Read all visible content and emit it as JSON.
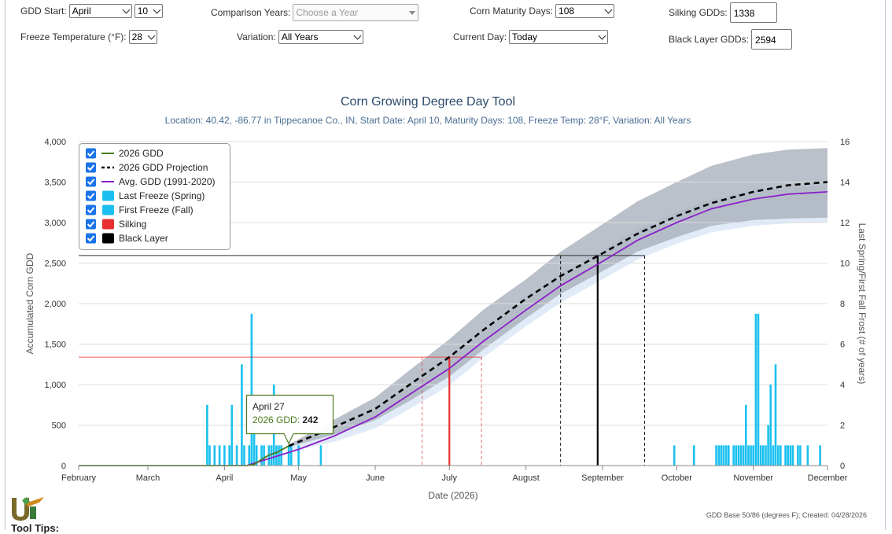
{
  "controls": {
    "gdd_start_label": "GDD Start:",
    "gdd_start_month": "April",
    "gdd_start_day": "10",
    "freeze_temp_label": "Freeze Temperature (°F):",
    "freeze_temp_value": "28",
    "comparison_years_label": "Comparison Years:",
    "comparison_years_placeholder": "Choose a Year",
    "variation_label": "Variation:",
    "variation_value": "All Years",
    "maturity_days_label": "Corn Maturity Days:",
    "maturity_days_value": "108",
    "current_day_label": "Current Day:",
    "current_day_value": "Today",
    "silking_label": "Silking GDDs:",
    "silking_value": "1338",
    "black_layer_label": "Black Layer GDDs:",
    "black_layer_value": "2594"
  },
  "footer": {
    "tool_tips": "Tool Tips:"
  },
  "colors": {
    "gdd2026": "#4a7a1a",
    "avg": "#8b1fc8",
    "frost": "#1bc0f0",
    "silking": "#e83030",
    "black": "#000000",
    "band_dark": "#a4acb8",
    "band_light": "#dfeaf8",
    "title": "#2c4a6a"
  },
  "chart_data": {
    "type": "line",
    "title": "Corn Growing Degree Day Tool",
    "subtitle": "Location: 40.42, -86.77 in Tippecanoe Co., IN, Start Date: April 10, Maturity Days: 108, Freeze Temp: 28°F, Variation: All Years",
    "xlabel": "Date (2026)",
    "ylabel": "Accumulated Corn GDD",
    "y2label": "Last Spring/First Fall Frost (# of years)",
    "credit": "GDD Base 50/86 (degrees F); Created: 04/28/2026",
    "x_ticks": [
      "February",
      "March",
      "April",
      "May",
      "June",
      "July",
      "August",
      "September",
      "October",
      "November",
      "December"
    ],
    "x_range": [
      "2026-02-01",
      "2026-12-01"
    ],
    "y_ticks": [
      "0",
      "500",
      "1,000",
      "1,500",
      "2,000",
      "2,500",
      "3,000",
      "3,500",
      "4,000"
    ],
    "ylim": [
      0,
      4000
    ],
    "y2_ticks": [
      "0",
      "2",
      "4",
      "6",
      "8",
      "10",
      "12",
      "14",
      "16"
    ],
    "y2lim": [
      0,
      16
    ],
    "grid": true,
    "legend_position": "top-left",
    "legend": [
      {
        "name": "2026 GDD",
        "symbol": "line",
        "color": "#4a7a1a"
      },
      {
        "name": "2026 GDD Projection",
        "symbol": "dashed",
        "color": "#000000"
      },
      {
        "name": "Avg. GDD (1991-2020)",
        "symbol": "line",
        "color": "#8b1fc8"
      },
      {
        "name": "Last Freeze (Spring)",
        "symbol": "box",
        "color": "#1bc0f0"
      },
      {
        "name": "First Freeze (Fall)",
        "symbol": "box",
        "color": "#1bc0f0"
      },
      {
        "name": "Silking",
        "symbol": "box",
        "color": "#e83030"
      },
      {
        "name": "Black Layer",
        "symbol": "box",
        "color": "#000000"
      }
    ],
    "series": [
      {
        "name": "2026 GDD",
        "x": [
          "2026-02-01",
          "2026-04-10",
          "2026-04-13",
          "2026-04-16",
          "2026-04-19",
          "2026-04-22",
          "2026-04-25",
          "2026-04-27"
        ],
        "values": [
          0,
          0,
          15,
          75,
          130,
          160,
          210,
          242
        ]
      },
      {
        "name": "2026 GDD Projection",
        "x": [
          "2026-04-27",
          "2026-05-15",
          "2026-06-01",
          "2026-06-15",
          "2026-07-01",
          "2026-07-15",
          "2026-08-01",
          "2026-08-15",
          "2026-09-01",
          "2026-09-15",
          "2026-10-01",
          "2026-10-15",
          "2026-11-01",
          "2026-11-15",
          "2026-12-01"
        ],
        "values": [
          242,
          470,
          700,
          1000,
          1340,
          1680,
          2060,
          2340,
          2620,
          2860,
          3080,
          3240,
          3380,
          3460,
          3500
        ]
      },
      {
        "name": "Avg. GDD (1991-2020)",
        "x": [
          "2026-04-10",
          "2026-05-01",
          "2026-05-15",
          "2026-06-01",
          "2026-06-15",
          "2026-07-01",
          "2026-07-15",
          "2026-08-01",
          "2026-08-15",
          "2026-09-01",
          "2026-09-15",
          "2026-10-01",
          "2026-10-15",
          "2026-11-01",
          "2026-11-15",
          "2026-12-01"
        ],
        "values": [
          0,
          200,
          360,
          600,
          880,
          1200,
          1540,
          1920,
          2220,
          2520,
          2780,
          3000,
          3170,
          3290,
          3350,
          3380
        ]
      }
    ],
    "range_bands": {
      "x": [
        "2026-04-27",
        "2026-05-15",
        "2026-06-01",
        "2026-06-15",
        "2026-07-01",
        "2026-07-15",
        "2026-08-01",
        "2026-08-15",
        "2026-09-01",
        "2026-09-15",
        "2026-10-01",
        "2026-10-15",
        "2026-11-01",
        "2026-11-15",
        "2026-12-01"
      ],
      "projection_high": [
        260,
        560,
        840,
        1180,
        1560,
        1930,
        2300,
        2640,
        2980,
        3260,
        3500,
        3700,
        3840,
        3900,
        3920
      ],
      "projection_low": [
        230,
        380,
        560,
        800,
        1100,
        1440,
        1820,
        2120,
        2400,
        2640,
        2820,
        2960,
        3030,
        3050,
        3060
      ],
      "average_high": [
        240,
        450,
        680,
        980,
        1320,
        1660,
        2040,
        2360,
        2660,
        2920,
        3130,
        3290,
        3390,
        3440,
        3460
      ],
      "average_low": [
        170,
        290,
        460,
        700,
        990,
        1340,
        1720,
        2010,
        2300,
        2540,
        2740,
        2880,
        2960,
        2990,
        3000
      ]
    },
    "thresholds": [
      {
        "name": "Silking",
        "value": 1338,
        "date": "2026-07-01",
        "range": [
          "2026-06-20",
          "2026-07-14"
        ]
      },
      {
        "name": "Black Layer",
        "value": 2594,
        "date": "2026-08-30",
        "range": [
          "2026-08-15",
          "2026-09-18"
        ]
      }
    ],
    "spring_freeze_counts": {
      "x": [
        "2026-03-25",
        "2026-03-26",
        "2026-03-28",
        "2026-03-30",
        "2026-04-01",
        "2026-04-03",
        "2026-04-04",
        "2026-04-06",
        "2026-04-08",
        "2026-04-09",
        "2026-04-11",
        "2026-04-12",
        "2026-04-13",
        "2026-04-14",
        "2026-04-16",
        "2026-04-17",
        "2026-04-19",
        "2026-04-20",
        "2026-04-21",
        "2026-04-22",
        "2026-04-23",
        "2026-04-24",
        "2026-04-27",
        "2026-04-28",
        "2026-05-01",
        "2026-05-10"
      ],
      "values": [
        3,
        1,
        1,
        1,
        1,
        1,
        3,
        1,
        5,
        1,
        1,
        7.5,
        2,
        1,
        1,
        1,
        1,
        1,
        4,
        1,
        1,
        1,
        1,
        1,
        1,
        1
      ]
    },
    "fall_freeze_counts": {
      "x": [
        "2026-09-30",
        "2026-10-08",
        "2026-10-17",
        "2026-10-18",
        "2026-10-19",
        "2026-10-20",
        "2026-10-21",
        "2026-10-22",
        "2026-10-24",
        "2026-10-25",
        "2026-10-26",
        "2026-10-27",
        "2026-10-28",
        "2026-10-29",
        "2026-10-30",
        "2026-10-31",
        "2026-11-01",
        "2026-11-02",
        "2026-11-03",
        "2026-11-04",
        "2026-11-05",
        "2026-11-06",
        "2026-11-07",
        "2026-11-08",
        "2026-11-09",
        "2026-11-10",
        "2026-11-11",
        "2026-11-12",
        "2026-11-14",
        "2026-11-15",
        "2026-11-16",
        "2026-11-17",
        "2026-11-19",
        "2026-11-20",
        "2026-11-23",
        "2026-11-28"
      ],
      "values": [
        1,
        1,
        1,
        1,
        1,
        1,
        1,
        1,
        1,
        1,
        1,
        1,
        1,
        3,
        1,
        1,
        1,
        7.5,
        7.5,
        1,
        1,
        1,
        2,
        4,
        1,
        5,
        1,
        1,
        1,
        1,
        1,
        1,
        1,
        1,
        1,
        1
      ]
    },
    "tooltip": {
      "date": "April 27",
      "series": "2026 GDD",
      "value": "242"
    }
  }
}
